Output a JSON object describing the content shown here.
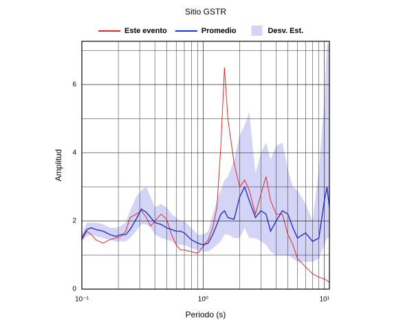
{
  "chart_data": {
    "type": "line",
    "title": "Sitio GSTR",
    "xlabel": "Periodo (s)",
    "ylabel": "Amplitud",
    "xscale": "log",
    "grid": true,
    "legend": "top",
    "x": [
      0.1,
      0.11,
      0.12,
      0.13,
      0.15,
      0.17,
      0.19,
      0.21,
      0.23,
      0.25,
      0.28,
      0.31,
      0.34,
      0.37,
      0.4,
      0.45,
      0.5,
      0.55,
      0.6,
      0.65,
      0.7,
      0.8,
      0.9,
      1.0,
      1.1,
      1.2,
      1.3,
      1.4,
      1.5,
      1.6,
      1.8,
      2.0,
      2.2,
      2.4,
      2.7,
      3.0,
      3.3,
      3.6,
      4.0,
      4.5,
      5.0,
      5.5,
      6.0,
      7.0,
      8.0,
      9.0,
      10.0,
      10.5,
      11.0
    ],
    "series": [
      {
        "name": "Este evento",
        "color": "#e8262a",
        "values": [
          1.45,
          1.7,
          1.6,
          1.45,
          1.35,
          1.45,
          1.5,
          1.55,
          1.7,
          2.1,
          2.2,
          2.3,
          2.1,
          1.85,
          2.0,
          2.2,
          2.05,
          1.6,
          1.3,
          1.15,
          1.15,
          1.1,
          1.05,
          1.25,
          1.45,
          1.8,
          2.4,
          4.2,
          6.5,
          5.0,
          3.7,
          3.0,
          3.2,
          2.9,
          2.2,
          2.8,
          3.3,
          2.6,
          2.2,
          2.2,
          1.6,
          1.3,
          0.9,
          0.65,
          0.45,
          0.35,
          0.3,
          0.25,
          0.2
        ]
      },
      {
        "name": "Promedio",
        "color": "#1f2fd0",
        "values": [
          1.5,
          1.75,
          1.8,
          1.75,
          1.7,
          1.6,
          1.55,
          1.6,
          1.6,
          1.75,
          2.05,
          2.35,
          2.25,
          2.1,
          1.95,
          1.9,
          1.8,
          1.75,
          1.7,
          1.7,
          1.65,
          1.45,
          1.35,
          1.3,
          1.35,
          1.6,
          1.9,
          2.2,
          2.3,
          2.1,
          2.05,
          2.7,
          3.0,
          2.6,
          2.1,
          2.3,
          2.2,
          1.7,
          2.0,
          2.3,
          2.2,
          1.8,
          1.5,
          1.65,
          1.4,
          1.5,
          2.6,
          3.0,
          2.4
        ]
      }
    ],
    "band": {
      "name": "Desv. Est.",
      "color": "#d4d4f7",
      "lower": [
        1.4,
        1.55,
        1.6,
        1.55,
        1.5,
        1.45,
        1.4,
        1.4,
        1.4,
        1.5,
        1.7,
        1.9,
        1.9,
        1.8,
        1.6,
        1.5,
        1.45,
        1.4,
        1.3,
        1.3,
        1.3,
        1.2,
        1.15,
        1.1,
        1.1,
        1.2,
        1.3,
        1.4,
        1.6,
        1.6,
        1.5,
        1.5,
        1.8,
        1.5,
        1.5,
        1.4,
        1.3,
        1.1,
        1.0,
        1.0,
        1.0,
        0.9,
        0.8,
        0.8,
        0.8,
        0.9,
        1.3,
        1.5,
        1.5
      ],
      "upper": [
        1.6,
        1.95,
        1.95,
        1.95,
        1.9,
        1.8,
        1.8,
        1.85,
        1.95,
        2.3,
        2.7,
        2.9,
        3.0,
        2.7,
        2.4,
        2.5,
        2.4,
        2.2,
        2.1,
        2.0,
        2.0,
        1.8,
        1.6,
        1.6,
        1.7,
        2.2,
        2.6,
        2.9,
        3.2,
        3.3,
        3.8,
        4.5,
        4.8,
        5.2,
        3.4,
        4.0,
        4.3,
        3.8,
        4.2,
        4.3,
        3.5,
        3.0,
        2.9,
        2.5,
        2.0,
        3.5,
        5.5,
        7.2,
        7.2
      ]
    },
    "xlim": [
      0.1,
      11.0
    ],
    "ylim": [
      0,
      7.27
    ],
    "xticks": [
      {
        "value": 0.1,
        "label": "10⁻¹"
      },
      {
        "value": 1,
        "label": "10⁰"
      },
      {
        "value": 10,
        "label": "10¹"
      }
    ],
    "yticks": [
      0,
      2,
      4,
      6
    ]
  }
}
